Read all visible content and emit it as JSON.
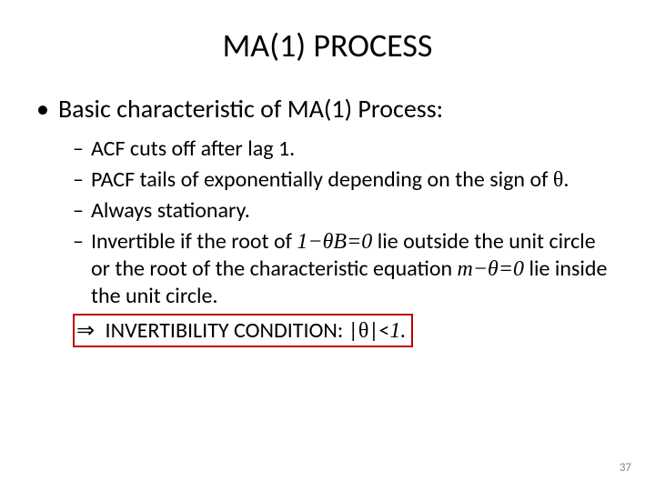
{
  "title": "MA(1) PROCESS",
  "level1": {
    "marker": "•",
    "text": "Basic characteristic of MA(1) Process:"
  },
  "level2": [
    {
      "marker": "–",
      "pre": "ACF cuts off after lag 1."
    },
    {
      "marker": "–",
      "pre": "PACF tails of exponentially depending on the sign of ",
      "sym": "θ",
      "post": "."
    },
    {
      "marker": "–",
      "pre": "Always stationary."
    },
    {
      "marker": "–",
      "pre": "Invertible if the root of ",
      "eq1": "1−θB=0",
      "mid": " lie outside the unit circle or the root of the characteristic equation ",
      "eq2": "m−θ=0",
      "post2": " lie inside the unit circle."
    }
  ],
  "conclusion": {
    "marker": "⇒",
    "text_pre": " INVERTIBILITY CONDITION: |",
    "sym": "θ",
    "text_post": "|<",
    "one": "1.",
    "box_color": "#c00000"
  },
  "page_number": "37",
  "colors": {
    "text": "#000000",
    "background": "#ffffff",
    "pagenum": "#888888"
  },
  "fonts": {
    "title_size": 36,
    "l1_size": 28,
    "l2_size": 24,
    "pagenum_size": 13
  }
}
